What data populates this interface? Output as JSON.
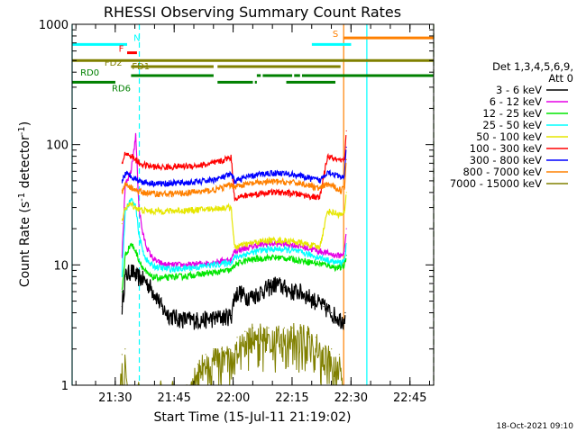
{
  "chart_data": {
    "type": "line",
    "title": "RHESSI Observing Summary Count Rates",
    "xlabel": "Start Time (15-Jul-11 21:19:02)",
    "ylabel": {
      "main": "Count Rate (s",
      "sup": "-1",
      "tail": " detector",
      "sup2": "-1",
      "end": ")"
    },
    "timestamp": "18-Oct-2021 09:10",
    "x_unit": "minutes after 21:19:02",
    "xlim": [
      0,
      92
    ],
    "ylim": [
      1,
      1000
    ],
    "yscale": "log",
    "x_ticks": [
      {
        "at": 10.97,
        "label": "21:30"
      },
      {
        "at": 25.97,
        "label": "21:45"
      },
      {
        "at": 40.97,
        "label": "22:00"
      },
      {
        "at": 55.97,
        "label": "22:15"
      },
      {
        "at": 70.97,
        "label": "22:30"
      },
      {
        "at": 85.97,
        "label": "22:45"
      }
    ],
    "y_ticks": [
      {
        "at": 1,
        "label": "1"
      },
      {
        "at": 10,
        "label": "10"
      },
      {
        "at": 100,
        "label": "100"
      },
      {
        "at": 1000,
        "label": "1000"
      }
    ],
    "legend": {
      "placement": "right",
      "header": [
        "Det 1,3,4,5,6,9,",
        "Att 0"
      ]
    },
    "series": [
      {
        "name": "3 - 6 keV",
        "color": "#000000",
        "x": [
          12.7,
          13.5,
          15.0,
          16.5,
          18.5,
          20.0,
          21.5,
          23.0,
          25.0,
          27.0,
          30.0,
          33.0,
          36.0,
          38.5,
          40.5,
          41.3,
          42.5,
          44.0,
          46.0,
          48.0,
          50.0,
          52.0,
          54.0,
          56.0,
          58.0,
          60.0,
          62.0,
          64.0,
          66.0,
          68.0,
          69.0,
          69.5
        ],
        "y": [
          4.5,
          8.0,
          9.0,
          8.0,
          7.5,
          6.5,
          5.5,
          4.3,
          3.8,
          3.6,
          3.5,
          3.5,
          3.6,
          3.7,
          3.8,
          5.5,
          6.0,
          5.5,
          5.5,
          6.0,
          6.5,
          7.0,
          6.5,
          6.0,
          6.0,
          5.5,
          5.0,
          4.5,
          4.0,
          3.6,
          3.5,
          4.0
        ]
      },
      {
        "name": "6 - 12 keV",
        "color": "#e600e6",
        "x": [
          12.7,
          13.5,
          15.0,
          16.2,
          17.0,
          18.0,
          19.0,
          20.0,
          21.0,
          22.0,
          23.0,
          24.0,
          26.0,
          28.0,
          30.0,
          32.0,
          34.0,
          36.0,
          38.0,
          40.0,
          40.5,
          41.3,
          43.0,
          45.0,
          47.0,
          50.0,
          53.0,
          55.0,
          57.0,
          59.0,
          61.0,
          63.0,
          65.0,
          67.0,
          68.5,
          69.3,
          69.8
        ],
        "y": [
          12.0,
          45.0,
          60.0,
          120.0,
          30.0,
          18.0,
          14.0,
          12.0,
          11.0,
          10.5,
          10.2,
          10.0,
          10.0,
          10.0,
          10.0,
          10.2,
          10.3,
          10.5,
          10.8,
          11.0,
          11.0,
          13.0,
          13.5,
          14.0,
          14.5,
          15.0,
          15.0,
          14.8,
          14.5,
          14.0,
          13.5,
          13.0,
          12.5,
          12.0,
          12.0,
          13.0,
          20.0
        ]
      },
      {
        "name": "12 - 25 keV",
        "color": "#00e600",
        "x": [
          12.7,
          13.5,
          15.0,
          16.2,
          17.0,
          18.0,
          19.0,
          20.0,
          22.0,
          24.0,
          26.0,
          28.0,
          30.0,
          32.0,
          34.0,
          36.0,
          38.0,
          40.0,
          40.5,
          41.3,
          43.0,
          45.0,
          47.0,
          50.0,
          53.0,
          55.0,
          57.0,
          59.0,
          61.0,
          63.0,
          65.0,
          67.0,
          68.5,
          69.3,
          69.8
        ],
        "y": [
          6.0,
          12.0,
          15.0,
          13.0,
          11.0,
          9.5,
          8.5,
          8.0,
          7.8,
          7.8,
          8.0,
          8.0,
          8.2,
          8.3,
          8.5,
          8.6,
          8.8,
          9.0,
          9.0,
          10.0,
          10.5,
          11.0,
          11.2,
          11.5,
          11.5,
          11.3,
          11.0,
          10.8,
          10.5,
          10.2,
          10.0,
          9.5,
          9.5,
          10.0,
          12.0
        ]
      },
      {
        "name": "25 - 50 keV",
        "color": "#00ffff",
        "x": [
          12.7,
          13.5,
          15.0,
          16.2,
          17.0,
          18.0,
          19.0,
          20.0,
          22.0,
          24.0,
          26.0,
          28.0,
          30.0,
          32.0,
          34.0,
          36.0,
          38.0,
          40.0,
          40.5,
          41.3,
          43.0,
          45.0,
          47.0,
          50.0,
          53.0,
          55.0,
          57.0,
          59.0,
          61.0,
          63.0,
          65.0,
          67.0,
          68.5,
          69.3,
          69.8
        ],
        "y": [
          8.0,
          28.0,
          35.0,
          30.0,
          18.0,
          13.0,
          11.0,
          10.0,
          9.5,
          9.3,
          9.2,
          9.3,
          9.5,
          9.6,
          9.8,
          10.0,
          10.2,
          10.5,
          10.5,
          11.5,
          12.0,
          12.5,
          13.0,
          13.5,
          13.5,
          13.3,
          13.0,
          12.5,
          12.0,
          11.5,
          11.0,
          10.5,
          10.5,
          11.0,
          15.0
        ]
      },
      {
        "name": "50 - 100 keV",
        "color": "#e6e600",
        "x": [
          12.7,
          13.5,
          15.0,
          16.2,
          17.0,
          18.0,
          20.0,
          22.0,
          24.0,
          26.0,
          28.0,
          30.0,
          32.0,
          34.0,
          36.0,
          38.0,
          40.0,
          40.5,
          41.3,
          43.0,
          45.0,
          47.0,
          50.0,
          53.0,
          55.0,
          57.0,
          59.0,
          61.0,
          63.0,
          65.0,
          67.0,
          68.5,
          69.3,
          69.8
        ],
        "y": [
          22.0,
          30.0,
          32.0,
          30.0,
          29.0,
          28.5,
          28.0,
          28.0,
          28.0,
          28.2,
          28.3,
          28.5,
          28.7,
          29.0,
          29.3,
          29.7,
          30.0,
          30.0,
          14.0,
          14.5,
          15.0,
          15.5,
          16.0,
          16.0,
          15.8,
          15.5,
          15.0,
          14.5,
          14.0,
          28.0,
          27.0,
          26.0,
          27.0,
          40.0
        ]
      },
      {
        "name": "100 - 300 keV",
        "color": "#ff0000",
        "x": [
          12.7,
          13.5,
          15.0,
          16.2,
          17.0,
          18.0,
          20.0,
          22.0,
          24.0,
          26.0,
          28.0,
          30.0,
          32.0,
          34.0,
          36.0,
          38.0,
          40.0,
          40.5,
          41.3,
          43.0,
          45.0,
          47.0,
          50.0,
          53.0,
          55.0,
          57.0,
          59.0,
          61.0,
          63.0,
          65.0,
          67.0,
          68.5,
          69.3,
          69.8
        ],
        "y": [
          70.0,
          85.0,
          80.0,
          75.0,
          70.0,
          68.0,
          66.0,
          65.0,
          65.0,
          65.5,
          66.0,
          66.5,
          67.0,
          68.0,
          70.0,
          73.0,
          78.0,
          78.0,
          36.0,
          37.0,
          38.0,
          39.0,
          40.0,
          40.0,
          39.5,
          39.0,
          38.0,
          37.0,
          36.0,
          80.0,
          75.0,
          72.0,
          75.0,
          130.0
        ]
      },
      {
        "name": "300 - 800 keV",
        "color": "#0000ff",
        "x": [
          12.7,
          13.5,
          15.0,
          16.2,
          17.0,
          18.0,
          20.0,
          22.0,
          24.0,
          26.0,
          28.0,
          30.0,
          32.0,
          34.0,
          36.0,
          38.0,
          40.0,
          40.5,
          41.3,
          43.0,
          45.0,
          47.0,
          50.0,
          53.0,
          55.0,
          57.0,
          59.0,
          61.0,
          63.0,
          65.0,
          67.0,
          68.5,
          69.3,
          69.8
        ],
        "y": [
          50.0,
          57.0,
          55.0,
          52.0,
          50.0,
          49.0,
          48.0,
          47.5,
          47.5,
          48.0,
          48.0,
          48.5,
          49.0,
          50.0,
          51.0,
          53.0,
          56.0,
          56.0,
          50.0,
          52.0,
          54.0,
          56.0,
          58.0,
          58.0,
          57.0,
          56.0,
          54.0,
          52.0,
          50.0,
          60.0,
          56.0,
          53.0,
          56.0,
          95.0
        ]
      },
      {
        "name": "800 - 7000 keV",
        "color": "#ff8000",
        "x": [
          12.7,
          13.5,
          15.0,
          16.2,
          17.0,
          18.0,
          20.0,
          22.0,
          24.0,
          26.0,
          28.0,
          30.0,
          32.0,
          34.0,
          36.0,
          38.0,
          40.0,
          40.5,
          41.3,
          43.0,
          45.0,
          47.0,
          50.0,
          53.0,
          55.0,
          57.0,
          59.0,
          61.0,
          63.0,
          65.0,
          67.0,
          68.5,
          69.3,
          69.8
        ],
        "y": [
          40.0,
          46.0,
          44.0,
          42.0,
          40.5,
          40.0,
          39.5,
          39.0,
          39.0,
          39.2,
          39.5,
          40.0,
          40.5,
          41.0,
          42.0,
          43.5,
          46.0,
          46.0,
          45.0,
          46.0,
          47.0,
          48.0,
          49.0,
          49.0,
          48.5,
          48.0,
          47.0,
          45.0,
          43.0,
          47.0,
          44.0,
          42.0,
          44.0,
          75.0
        ]
      },
      {
        "name": "7000 - 15000 keV",
        "color": "#808000",
        "x": [
          12.0,
          12.7,
          13.0,
          13.5,
          14.0,
          30.0,
          32.0,
          34.0,
          36.0,
          38.0,
          40.0,
          42.0,
          44.0,
          46.0,
          48.0,
          50.0,
          52.0,
          54.0,
          56.0,
          58.0,
          60.0,
          62.0,
          64.0,
          66.0,
          68.0,
          69.0
        ],
        "y": [
          1.0,
          1.8,
          1.0,
          2.0,
          1.0,
          1.0,
          1.5,
          1.8,
          2.0,
          2.0,
          2.0,
          2.5,
          2.8,
          3.0,
          3.0,
          3.0,
          3.0,
          3.0,
          3.0,
          3.0,
          3.0,
          2.5,
          2.0,
          2.0,
          1.8,
          1.0
        ]
      }
    ],
    "flags": [
      {
        "label": "N",
        "label_color": "#00ffff",
        "color": "#00ffff",
        "value": 680,
        "segments": [
          [
            0,
            14
          ],
          [
            61,
            71
          ]
        ]
      },
      {
        "label": "F",
        "label_color": "#ff0000",
        "color": "#ff0000",
        "value": 580,
        "segments": [
          [
            14,
            16.5
          ]
        ]
      },
      {
        "label": "FD1",
        "label_color": "#808000",
        "color": "#808000",
        "value": 500,
        "segments": [
          [
            0,
            92
          ]
        ]
      },
      {
        "label": "FD2",
        "label_color": "#808000",
        "color": "#808000",
        "value": 445,
        "segments": [
          [
            15,
            36
          ],
          [
            37,
            68.3
          ]
        ]
      },
      {
        "label": "RD0",
        "label_color": "#008000",
        "color": "#008000",
        "value": 375,
        "segments": [
          [
            15,
            36
          ],
          [
            47,
            48
          ],
          [
            48.5,
            56
          ],
          [
            56.5,
            58
          ],
          [
            58.5,
            92
          ]
        ]
      },
      {
        "label": "RD6",
        "label_color": "#008000",
        "color": "#008000",
        "value": 330,
        "segments": [
          [
            0,
            11
          ],
          [
            37,
            46
          ],
          [
            46.5,
            47
          ],
          [
            54.5,
            67
          ]
        ]
      },
      {
        "label": "S",
        "label_color": "#ff8000",
        "color": "#ff8000",
        "value": 770,
        "segments": [
          [
            69,
            92
          ]
        ]
      }
    ],
    "markers": [
      {
        "kind": "dashed",
        "color": "#00ffff",
        "x": 17.1
      },
      {
        "kind": "dashed",
        "color": "#00ffff",
        "x": 92
      },
      {
        "kind": "solid",
        "color": "#00ffff",
        "x": 0
      },
      {
        "kind": "solid",
        "color": "#00ffff",
        "x": 75
      },
      {
        "kind": "solid",
        "color": "#ff8000",
        "x": 69.1
      },
      {
        "kind": "dashed",
        "color": "#ff8000",
        "x": 92
      }
    ]
  }
}
